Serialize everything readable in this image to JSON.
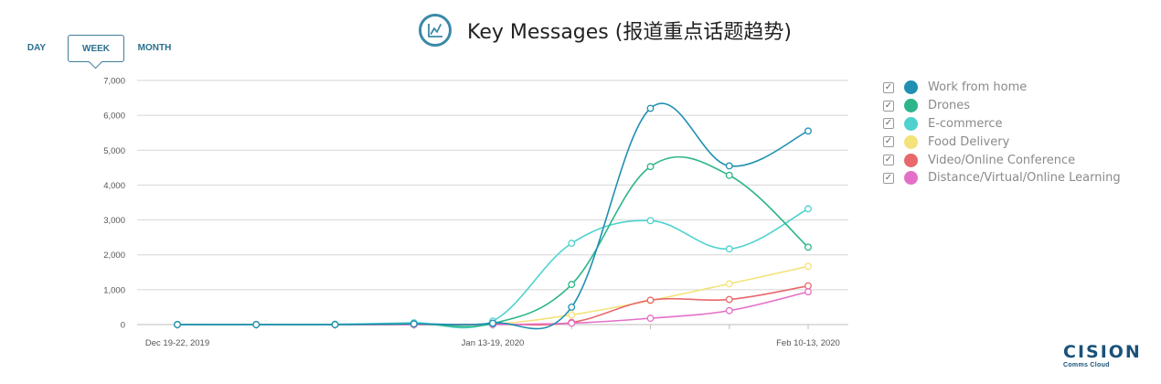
{
  "header": {
    "title": "Key Messages (报道重点话题趋势)"
  },
  "tabs": [
    {
      "label": "DAY",
      "selected": false
    },
    {
      "label": "WEEK",
      "selected": true
    },
    {
      "label": "MONTH",
      "selected": false
    }
  ],
  "brand": {
    "name": "CISION",
    "subtitle": "Comms Cloud"
  },
  "chart_data": {
    "type": "line",
    "title": "",
    "xlabel": "",
    "ylabel": "",
    "ylim": [
      0,
      7000
    ],
    "yticks": [
      "0",
      "1,000",
      "2,000",
      "3,000",
      "4,000",
      "5,000",
      "6,000",
      "7,000"
    ],
    "x_tick_labels": [
      {
        "index": 0,
        "label": "Dec 19-22, 2019"
      },
      {
        "index": 4,
        "label": "Jan 13-19, 2020"
      },
      {
        "index": 8,
        "label": "Feb 10-13, 2020"
      }
    ],
    "grid": "horizontal",
    "legend_position": "right",
    "series": [
      {
        "name": "Work from home",
        "color": "#1f8fb2",
        "checked": true,
        "values": [
          0,
          0,
          0,
          20,
          40,
          500,
          6200,
          4550,
          5550
        ]
      },
      {
        "name": "Drones",
        "color": "#2cb58a",
        "checked": true,
        "values": [
          0,
          0,
          0,
          20,
          30,
          1150,
          4530,
          4280,
          2220
        ]
      },
      {
        "name": "E-commerce",
        "color": "#4fd2cf",
        "checked": true,
        "values": [
          0,
          0,
          10,
          50,
          100,
          2330,
          2980,
          2170,
          3320
        ]
      },
      {
        "name": "Food Delivery",
        "color": "#f4e27a",
        "checked": true,
        "values": [
          0,
          0,
          0,
          0,
          10,
          280,
          690,
          1170,
          1670
        ]
      },
      {
        "name": "Video/Online Conference",
        "color": "#e8686c",
        "checked": true,
        "values": [
          0,
          0,
          0,
          0,
          10,
          60,
          700,
          720,
          1110
        ]
      },
      {
        "name": "Distance/Virtual/Online Learning",
        "color": "#e46fc8",
        "checked": true,
        "values": [
          0,
          0,
          0,
          0,
          0,
          40,
          180,
          400,
          940
        ]
      }
    ]
  }
}
